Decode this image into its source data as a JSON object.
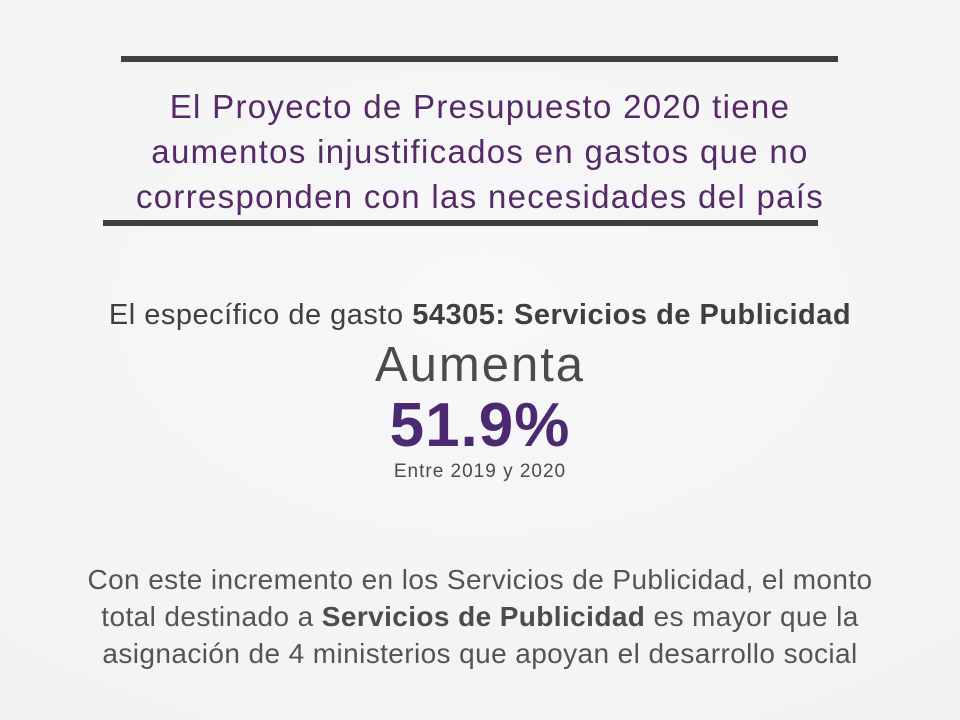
{
  "colors": {
    "title-purple": "#562a66",
    "percent-purple": "#4b2a72",
    "rule-gray": "#3f3f3f",
    "heading-gray": "#3f3f42",
    "mid-gray": "#4b4b4d",
    "body-gray": "#545456"
  },
  "title": {
    "line1": "El Proyecto de Presupuesto 2020 tiene",
    "line2": "aumentos injustificados en gastos que no",
    "line3": "corresponden con las necesidades del país"
  },
  "subtitle": {
    "prefix": "El específico de gasto ",
    "bold": "54305: Servicios de Publicidad"
  },
  "stat": {
    "verb": "Aumenta",
    "value": "51.9%",
    "range": "Entre 2019 y 2020"
  },
  "paragraph": {
    "line1": "Con este incremento en los Servicios de Publicidad, el monto",
    "line2_before": "total destinado a ",
    "line2_bold": "Servicios de Publicidad",
    "line2_after": " es mayor que la",
    "line3": "asignación de 4 ministerios que apoyan el desarrollo social"
  }
}
